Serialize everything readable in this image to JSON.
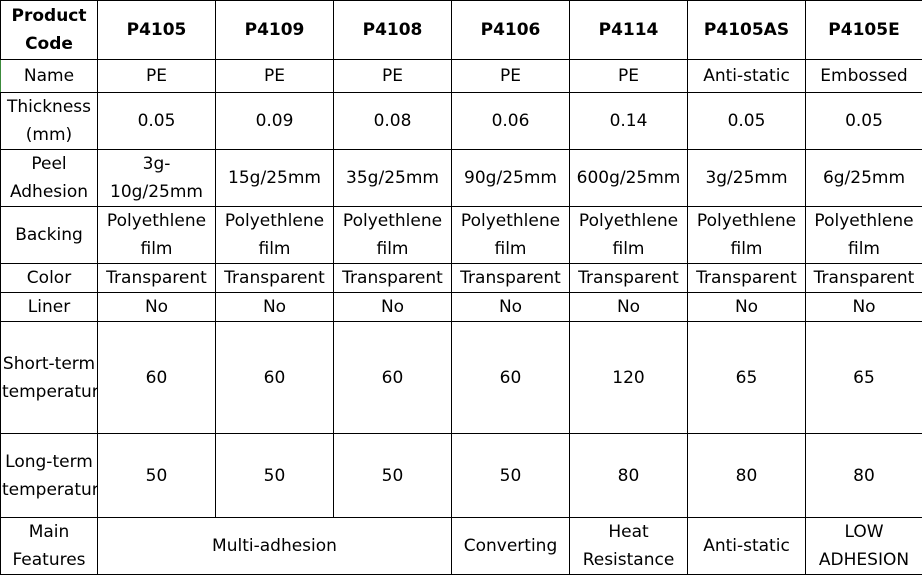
{
  "headers": [
    "Product Code",
    "P4105",
    "P4109",
    "P4108",
    "P4106",
    "P4114",
    "P4105AS",
    "P4105E"
  ],
  "rows": {
    "name": [
      "Name",
      "PE",
      "PE",
      "PE",
      "PE",
      "PE",
      "Anti-static",
      "Embossed"
    ],
    "thickness": [
      "Thickness (mm)",
      "0.05",
      "0.09",
      "0.08",
      "0.06",
      "0.14",
      "0.05",
      "0.05"
    ],
    "peel": [
      "Peel Adhesion",
      "3g-10g/25mm",
      "15g/25mm",
      "35g/25mm",
      "90g/25mm",
      "600g/25mm",
      "3g/25mm",
      "6g/25mm"
    ],
    "backing": [
      "Backing",
      "Polyethlene film",
      "Polyethlene film",
      "Polyethlene film",
      "Polyethlene film",
      "Polyethlene film",
      "Polyethlene film",
      "Polyethlene film"
    ],
    "color": [
      "Color",
      "Transparent",
      "Transparent",
      "Transparent",
      "Transparent",
      "Transparent",
      "Transparent",
      "Transparent"
    ],
    "liner": [
      "Liner",
      "No",
      "No",
      "No",
      "No",
      "No",
      "No",
      "No"
    ],
    "short_term": [
      "Short-term temperature",
      "60",
      "60",
      "60",
      "60",
      "120",
      "65",
      "65"
    ],
    "long_term": [
      "Long-term temperature",
      "50",
      "50",
      "50",
      "50",
      "80",
      "80",
      "80"
    ]
  },
  "features": {
    "label": "Main Features",
    "multi": "Multi-adhesion",
    "converting": "Converting",
    "heat": "Heat Resistance",
    "antistatic": "Anti-static",
    "low": "LOW ADHESION"
  }
}
